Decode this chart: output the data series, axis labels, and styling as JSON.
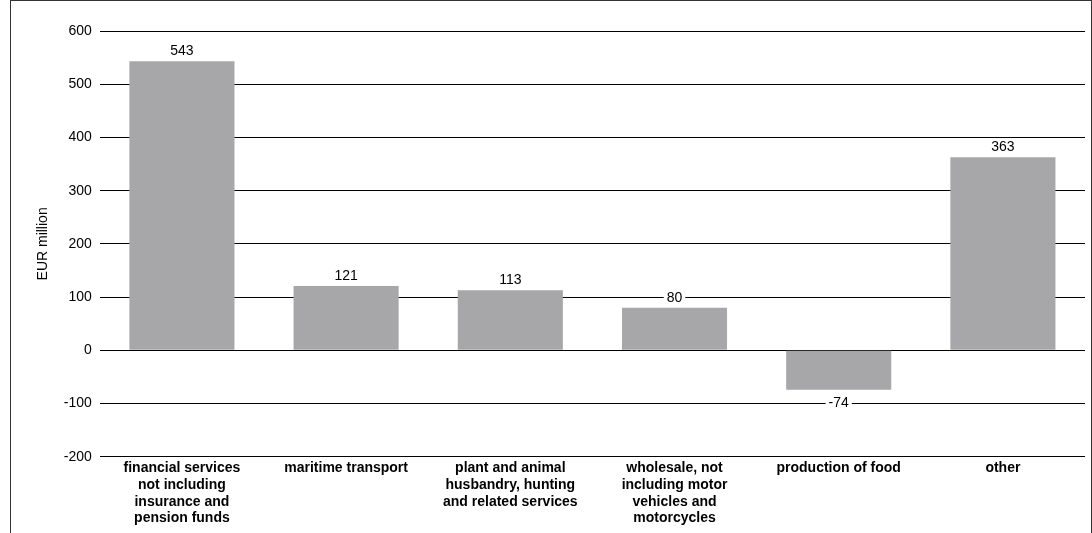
{
  "chart_data": {
    "type": "bar",
    "ylabel": "EUR million",
    "categories": [
      "financial services not including insurance and pension funds",
      "maritime transport",
      "plant and animal husbandry, hunting and related services",
      "wholesale, not including motor vehicles and motorcycles",
      "production of food",
      "other"
    ],
    "values": [
      543,
      121,
      113,
      80,
      -74,
      363
    ],
    "color": "#a7a7a9",
    "ylim": [
      -200,
      600
    ],
    "yticks": [
      -200,
      -100,
      0,
      100,
      200,
      300,
      400,
      500,
      600
    ],
    "grid": "y",
    "data_labels": true
  }
}
